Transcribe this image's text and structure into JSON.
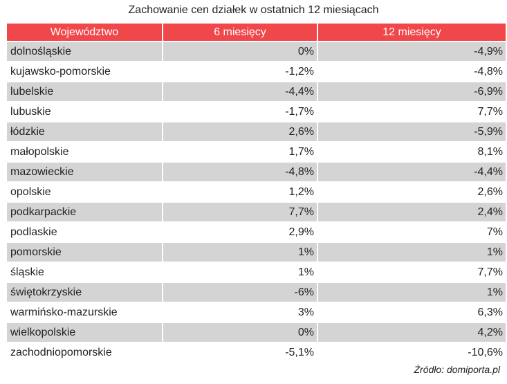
{
  "title": "Zachowanie cen działek w ostatnich 12 miesiącach",
  "header": [
    "Województwo",
    "6 miesięcy",
    "12 miesięcy"
  ],
  "rows": [
    {
      "region": "dolnośląskie",
      "m6": "0%",
      "m12": "-4,9%"
    },
    {
      "region": "kujawsko-pomorskie",
      "m6": "-1,2%",
      "m12": "-4,8%"
    },
    {
      "region": "lubelskie",
      "m6": "-4,4%",
      "m12": "-6,9%"
    },
    {
      "region": "lubuskie",
      "m6": "-1,7%",
      "m12": "7,7%"
    },
    {
      "region": "łódzkie",
      "m6": "2,6%",
      "m12": "-5,9%"
    },
    {
      "region": "małopolskie",
      "m6": "1,7%",
      "m12": "8,1%"
    },
    {
      "region": "mazowieckie",
      "m6": "-4,8%",
      "m12": "-4,4%"
    },
    {
      "region": "opolskie",
      "m6": "1,2%",
      "m12": "2,6%"
    },
    {
      "region": "podkarpackie",
      "m6": "7,7%",
      "m12": "2,4%"
    },
    {
      "region": "podlaskie",
      "m6": "2,9%",
      "m12": "7%"
    },
    {
      "region": "pomorskie",
      "m6": "1%",
      "m12": "1%"
    },
    {
      "region": "śląskie",
      "m6": "1%",
      "m12": "7,7%"
    },
    {
      "region": "świętokrzyskie",
      "m6": "-6%",
      "m12": "1%"
    },
    {
      "region": "warmińsko-mazurskie",
      "m6": "3%",
      "m12": "6,3%"
    },
    {
      "region": "wielkopolskie",
      "m6": "0%",
      "m12": "4,2%"
    },
    {
      "region": "zachodniopomorskie",
      "m6": "-5,1%",
      "m12": "-10,6%"
    }
  ],
  "source": "Źródło: domiporta.pl",
  "colors": {
    "header_bg": "#f0474b",
    "stripe_bg": "#d4d4d4"
  }
}
